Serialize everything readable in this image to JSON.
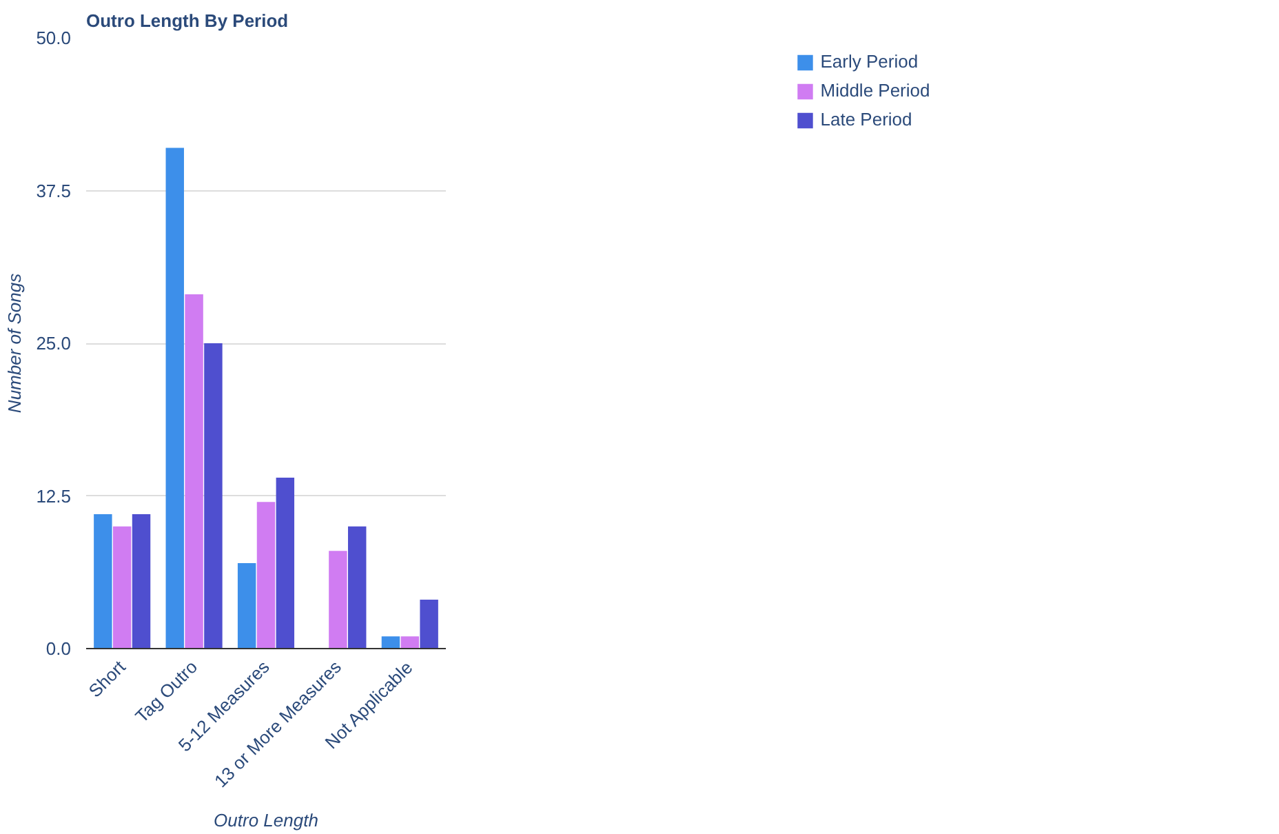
{
  "chart_data": {
    "type": "bar",
    "title": "Outro Length By Period",
    "xlabel": "Outro Length",
    "ylabel": "Number of Songs",
    "categories": [
      "Short",
      "Tag Outro",
      "5-12 Measures",
      "13 or More Measures",
      "Not Applicable"
    ],
    "series": [
      {
        "name": "Early Period",
        "color": "#3d8fea",
        "values": [
          11,
          41,
          7,
          0,
          1
        ]
      },
      {
        "name": "Middle Period",
        "color": "#d07cf2",
        "values": [
          10,
          29,
          12,
          8,
          1
        ]
      },
      {
        "name": "Late Period",
        "color": "#4f4fcf",
        "values": [
          11,
          25,
          14,
          10,
          4
        ]
      }
    ],
    "ylim": [
      0,
      50
    ],
    "yticks": [
      {
        "value": 0,
        "label": "0.0"
      },
      12.5,
      {
        "value": 25,
        "label": "25.0"
      },
      37.5,
      {
        "value": 50,
        "label": "50.0"
      }
    ],
    "grid": "y",
    "legend": "top right"
  }
}
